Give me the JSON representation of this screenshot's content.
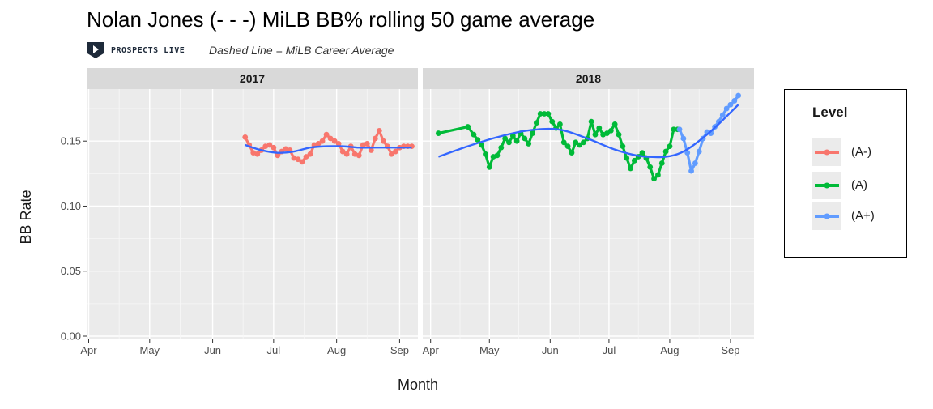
{
  "chart_data": {
    "type": "line",
    "title": "Nolan Jones (- - -) MiLB BB% rolling 50 game average",
    "subtitle": "Dashed Line = MiLB Career Average",
    "brand": "PROSPECTS LIVE",
    "xlabel": "Month",
    "ylabel": "BB Rate",
    "ylim": [
      0,
      0.19
    ],
    "yticks": [
      "0.00",
      "0.05",
      "0.10",
      "0.15"
    ],
    "xticks": [
      "Apr",
      "May",
      "Jun",
      "Jul",
      "Aug",
      "Sep"
    ],
    "facets": [
      "2017",
      "2018"
    ],
    "legend_title": "Level",
    "legend_position": "right",
    "grid": true,
    "series": [
      {
        "name": "(A-)",
        "color": "#F8766D",
        "facet": "2017",
        "x": [
          "2017-06-17",
          "2017-06-19",
          "2017-06-21",
          "2017-06-23",
          "2017-06-25",
          "2017-06-27",
          "2017-06-29",
          "2017-07-01",
          "2017-07-03",
          "2017-07-05",
          "2017-07-07",
          "2017-07-09",
          "2017-07-11",
          "2017-07-13",
          "2017-07-15",
          "2017-07-17",
          "2017-07-19",
          "2017-07-21",
          "2017-07-23",
          "2017-07-25",
          "2017-07-27",
          "2017-07-29",
          "2017-07-31",
          "2017-08-02",
          "2017-08-04",
          "2017-08-06",
          "2017-08-08",
          "2017-08-10",
          "2017-08-12",
          "2017-08-14",
          "2017-08-16",
          "2017-08-18",
          "2017-08-20",
          "2017-08-22",
          "2017-08-24",
          "2017-08-26",
          "2017-08-28",
          "2017-08-30",
          "2017-09-01",
          "2017-09-03",
          "2017-09-05",
          "2017-09-07"
        ],
        "values": [
          0.153,
          0.147,
          0.141,
          0.14,
          0.143,
          0.146,
          0.147,
          0.145,
          0.139,
          0.142,
          0.144,
          0.143,
          0.137,
          0.136,
          0.134,
          0.138,
          0.14,
          0.147,
          0.148,
          0.15,
          0.155,
          0.152,
          0.15,
          0.148,
          0.142,
          0.14,
          0.146,
          0.14,
          0.139,
          0.147,
          0.148,
          0.143,
          0.152,
          0.158,
          0.15,
          0.146,
          0.14,
          0.142,
          0.145,
          0.146,
          0.146,
          0.146
        ]
      },
      {
        "name": "(A)",
        "color": "#00BA38",
        "facet": "2018",
        "x": [
          "2018-04-05",
          "2018-04-20",
          "2018-04-23",
          "2018-04-25",
          "2018-04-27",
          "2018-04-29",
          "2018-05-01",
          "2018-05-03",
          "2018-05-05",
          "2018-05-07",
          "2018-05-09",
          "2018-05-11",
          "2018-05-13",
          "2018-05-15",
          "2018-05-17",
          "2018-05-19",
          "2018-05-21",
          "2018-05-23",
          "2018-05-25",
          "2018-05-27",
          "2018-05-29",
          "2018-05-31",
          "2018-06-02",
          "2018-06-04",
          "2018-06-06",
          "2018-06-08",
          "2018-06-10",
          "2018-06-12",
          "2018-06-14",
          "2018-06-16",
          "2018-06-18",
          "2018-06-20",
          "2018-06-22",
          "2018-06-24",
          "2018-06-26",
          "2018-06-28",
          "2018-06-30",
          "2018-07-02",
          "2018-07-04",
          "2018-07-06",
          "2018-07-08",
          "2018-07-10",
          "2018-07-12",
          "2018-07-14",
          "2018-07-16",
          "2018-07-18",
          "2018-07-20",
          "2018-07-22",
          "2018-07-24",
          "2018-07-26",
          "2018-07-28",
          "2018-07-30",
          "2018-08-01",
          "2018-08-03",
          "2018-08-05"
        ],
        "values": [
          0.156,
          0.161,
          0.155,
          0.151,
          0.147,
          0.14,
          0.13,
          0.138,
          0.139,
          0.145,
          0.152,
          0.149,
          0.154,
          0.15,
          0.156,
          0.152,
          0.148,
          0.156,
          0.164,
          0.171,
          0.171,
          0.171,
          0.165,
          0.16,
          0.163,
          0.149,
          0.146,
          0.141,
          0.149,
          0.147,
          0.149,
          0.152,
          0.165,
          0.155,
          0.16,
          0.155,
          0.156,
          0.158,
          0.163,
          0.155,
          0.146,
          0.137,
          0.129,
          0.135,
          0.138,
          0.141,
          0.137,
          0.13,
          0.121,
          0.124,
          0.133,
          0.142,
          0.146,
          0.159,
          0.159
        ]
      },
      {
        "name": "(A+)",
        "color": "#619CFF",
        "facet": "2018",
        "x": [
          "2018-08-06",
          "2018-08-08",
          "2018-08-10",
          "2018-08-12",
          "2018-08-14",
          "2018-08-16",
          "2018-08-18",
          "2018-08-20",
          "2018-08-22",
          "2018-08-24",
          "2018-08-26",
          "2018-08-28",
          "2018-08-30",
          "2018-09-01",
          "2018-09-03",
          "2018-09-05"
        ],
        "values": [
          0.159,
          0.152,
          0.141,
          0.127,
          0.133,
          0.142,
          0.152,
          0.157,
          0.156,
          0.161,
          0.165,
          0.17,
          0.175,
          0.178,
          0.181,
          0.185
        ]
      }
    ],
    "smooth_series": [
      {
        "facet": "2017",
        "color": "#3366FF",
        "x": [
          "2017-06-17",
          "2017-06-25",
          "2017-07-03",
          "2017-07-11",
          "2017-07-19",
          "2017-07-27",
          "2017-08-04",
          "2017-08-12",
          "2017-08-20",
          "2017-08-28",
          "2017-09-07"
        ],
        "values": [
          0.147,
          0.143,
          0.141,
          0.142,
          0.145,
          0.146,
          0.146,
          0.145,
          0.145,
          0.145,
          0.145
        ]
      },
      {
        "facet": "2018",
        "color": "#3366FF",
        "x": [
          "2018-04-05",
          "2018-04-20",
          "2018-05-05",
          "2018-05-20",
          "2018-06-05",
          "2018-06-20",
          "2018-07-05",
          "2018-07-20",
          "2018-08-05",
          "2018-08-20",
          "2018-09-05"
        ],
        "values": [
          0.138,
          0.146,
          0.153,
          0.158,
          0.159,
          0.152,
          0.143,
          0.138,
          0.14,
          0.155,
          0.178
        ]
      }
    ]
  },
  "legend": {
    "title": "Level",
    "items": [
      {
        "label": "(A-)",
        "color": "#F8766D"
      },
      {
        "label": "(A)",
        "color": "#00BA38"
      },
      {
        "label": "(A+)",
        "color": "#619CFF"
      }
    ]
  }
}
